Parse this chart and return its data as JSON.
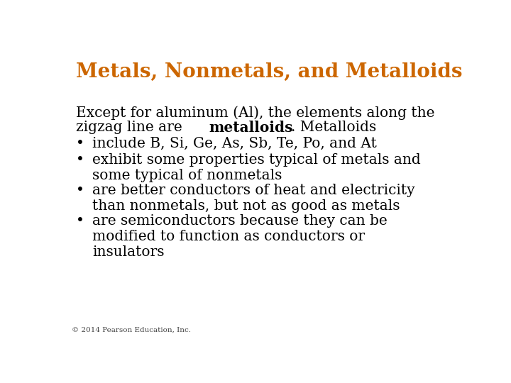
{
  "title": "Metals, Nonmetals, and Metalloids",
  "title_color": "#CC6600",
  "title_fontsize": 20,
  "background_color": "#FFFFFF",
  "body_fontsize": 14.5,
  "body_color": "#000000",
  "bullet_items": [
    "include B, Si, Ge, As, Sb, Te, Po, and At",
    "exhibit some properties typical of metals and\nsome typical of nonmetals",
    "are better conductors of heat and electricity\nthan nonmetals, but not as good as metals",
    "are semiconductors because they can be\nmodified to function as conductors or\ninsulators"
  ],
  "footer": "© 2014 Pearson Education, Inc.",
  "footer_fontsize": 7.5,
  "line1": "Except for aluminum (Al), the elements along the",
  "line2_pre": "zigzag line are ",
  "line2_bold": "metalloids",
  "line2_post": ". Metalloids"
}
